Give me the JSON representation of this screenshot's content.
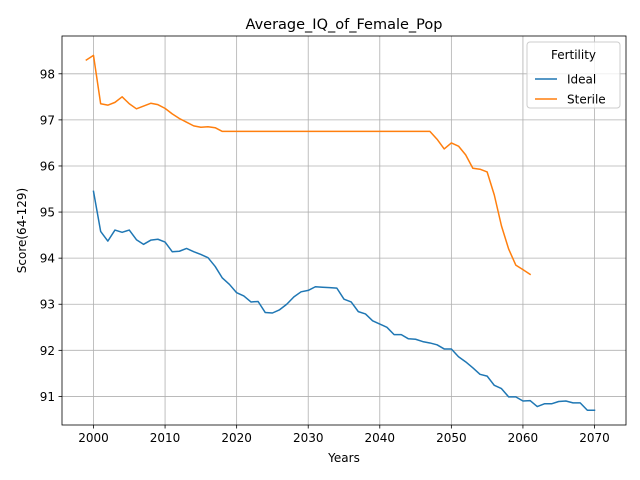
{
  "chart_data": {
    "type": "line",
    "title": "Average_IQ_of_Female_Pop",
    "xlabel": "Years",
    "ylabel": "Score(64-129)",
    "xlim": [
      1995.6,
      2074.4
    ],
    "ylim": [
      90.38,
      98.82
    ],
    "xticks": [
      2000,
      2010,
      2020,
      2030,
      2040,
      2050,
      2060,
      2070
    ],
    "yticks": [
      91,
      92,
      93,
      94,
      95,
      96,
      97,
      98
    ],
    "grid": true,
    "legend": {
      "title": "Fertility",
      "placement": "top-right"
    },
    "series": [
      {
        "name": "Ideal",
        "color": "#1f77b4",
        "x": [
          2000,
          2001,
          2002,
          2003,
          2004,
          2005,
          2006,
          2007,
          2008,
          2009,
          2010,
          2011,
          2012,
          2013,
          2014,
          2015,
          2016,
          2017,
          2018,
          2019,
          2020,
          2021,
          2022,
          2023,
          2024,
          2025,
          2026,
          2027,
          2028,
          2029,
          2030,
          2031,
          2032,
          2033,
          2034,
          2035,
          2036,
          2037,
          2038,
          2039,
          2040,
          2041,
          2042,
          2043,
          2044,
          2045,
          2046,
          2047,
          2048,
          2049,
          2050,
          2051,
          2052,
          2053,
          2054,
          2055,
          2056,
          2057,
          2058,
          2059,
          2060,
          2061,
          2062,
          2063,
          2064,
          2065,
          2066,
          2067,
          2068,
          2069,
          2070
        ],
        "values": [
          95.45,
          94.58,
          94.37,
          94.61,
          94.56,
          94.61,
          94.4,
          94.3,
          94.39,
          94.41,
          94.35,
          94.14,
          94.15,
          94.21,
          94.14,
          94.08,
          94.01,
          93.82,
          93.57,
          93.43,
          93.25,
          93.18,
          93.05,
          93.06,
          92.82,
          92.81,
          92.88,
          93.0,
          93.16,
          93.27,
          93.3,
          93.38,
          93.37,
          93.36,
          93.35,
          93.11,
          93.05,
          92.84,
          92.79,
          92.64,
          92.57,
          92.5,
          92.34,
          92.34,
          92.25,
          92.24,
          92.19,
          92.16,
          92.12,
          92.03,
          92.03,
          91.86,
          91.75,
          91.62,
          91.48,
          91.44,
          91.24,
          91.17,
          90.99,
          90.99,
          90.9,
          90.91,
          90.78,
          90.84,
          90.84,
          90.89,
          90.9,
          90.86,
          90.86,
          90.7,
          90.7
        ]
      },
      {
        "name": "Sterile",
        "color": "#ff7f0e",
        "x": [
          1999,
          2000,
          2001,
          2002,
          2003,
          2004,
          2005,
          2006,
          2007,
          2008,
          2009,
          2010,
          2011,
          2012,
          2013,
          2014,
          2015,
          2016,
          2017,
          2018,
          2019,
          2020,
          2021,
          2022,
          2023,
          2024,
          2025,
          2026,
          2027,
          2028,
          2029,
          2030,
          2031,
          2032,
          2033,
          2034,
          2035,
          2036,
          2037,
          2038,
          2039,
          2040,
          2041,
          2042,
          2043,
          2044,
          2045,
          2046,
          2047,
          2048,
          2049,
          2050,
          2051,
          2052,
          2053,
          2054,
          2055,
          2056,
          2057,
          2058,
          2059,
          2060,
          2061
        ],
        "values": [
          98.3,
          98.4,
          97.35,
          97.32,
          97.38,
          97.5,
          97.35,
          97.24,
          97.3,
          97.36,
          97.33,
          97.25,
          97.13,
          97.03,
          96.95,
          96.87,
          96.84,
          96.85,
          96.83,
          96.75,
          96.75,
          96.75,
          96.75,
          96.75,
          96.75,
          96.75,
          96.75,
          96.75,
          96.75,
          96.75,
          96.75,
          96.75,
          96.75,
          96.75,
          96.75,
          96.75,
          96.75,
          96.75,
          96.75,
          96.75,
          96.75,
          96.75,
          96.75,
          96.75,
          96.75,
          96.75,
          96.75,
          96.75,
          96.75,
          96.58,
          96.37,
          96.5,
          96.43,
          96.24,
          95.95,
          95.93,
          95.87,
          95.37,
          94.7,
          94.2,
          93.85,
          93.75,
          93.65
        ]
      }
    ]
  }
}
